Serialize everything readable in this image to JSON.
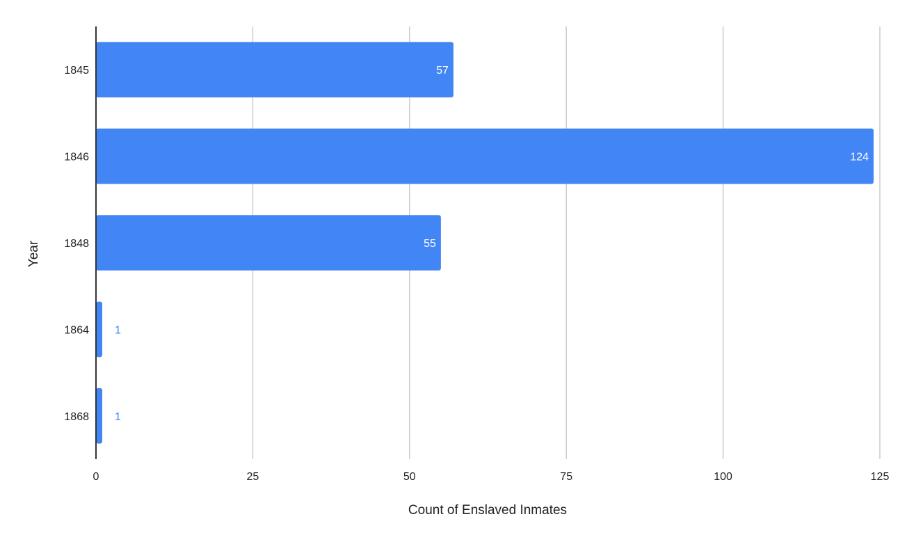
{
  "chart_data": {
    "type": "bar",
    "orientation": "horizontal",
    "categories": [
      "1845",
      "1846",
      "1848",
      "1864",
      "1868"
    ],
    "values": [
      57,
      124,
      55,
      1,
      1
    ],
    "data_labels": [
      "57",
      "124",
      "55",
      "1",
      "1"
    ],
    "title": "",
    "xlabel": "Count of Enslaved Inmates",
    "ylabel": "Year",
    "xlim": [
      0,
      125
    ],
    "xticks": [
      0,
      25,
      50,
      75,
      100,
      125
    ],
    "xtick_labels": [
      "0",
      "25",
      "50",
      "75",
      "100",
      "125"
    ],
    "grid": "vertical",
    "legend": "none",
    "colors": {
      "bar": "#4285f4",
      "label_inside": "#ffffff",
      "label_outside": "#4285f4",
      "grid": "#cccccc",
      "axis": "#333333"
    }
  }
}
